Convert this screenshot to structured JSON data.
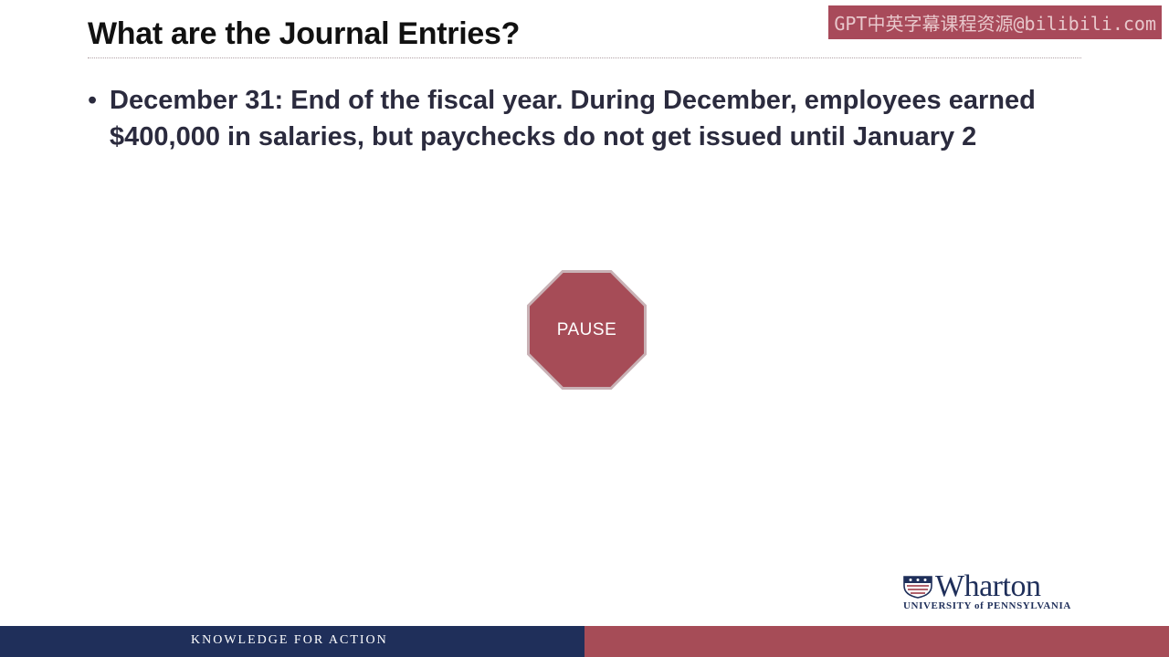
{
  "watermark": "GPT中英字幕课程资源@bilibili.com",
  "slide": {
    "title": "What are the Journal Entries?",
    "bullets": [
      "December 31: End of the fiscal year.  During December, employees earned $400,000 in salaries, but paychecks do not get issued until January 2"
    ],
    "pause_label": "PAUSE"
  },
  "logo": {
    "name": "Wharton",
    "subtitle": "UNIVERSITY of PENNSYLVANIA",
    "icon": "penn-shield-icon"
  },
  "footer": {
    "tagline": "KNOWLEDGE FOR ACTION"
  },
  "colors": {
    "navy": "#1f2f5a",
    "crimson": "#a64c57",
    "text": "#2b2b3e"
  }
}
